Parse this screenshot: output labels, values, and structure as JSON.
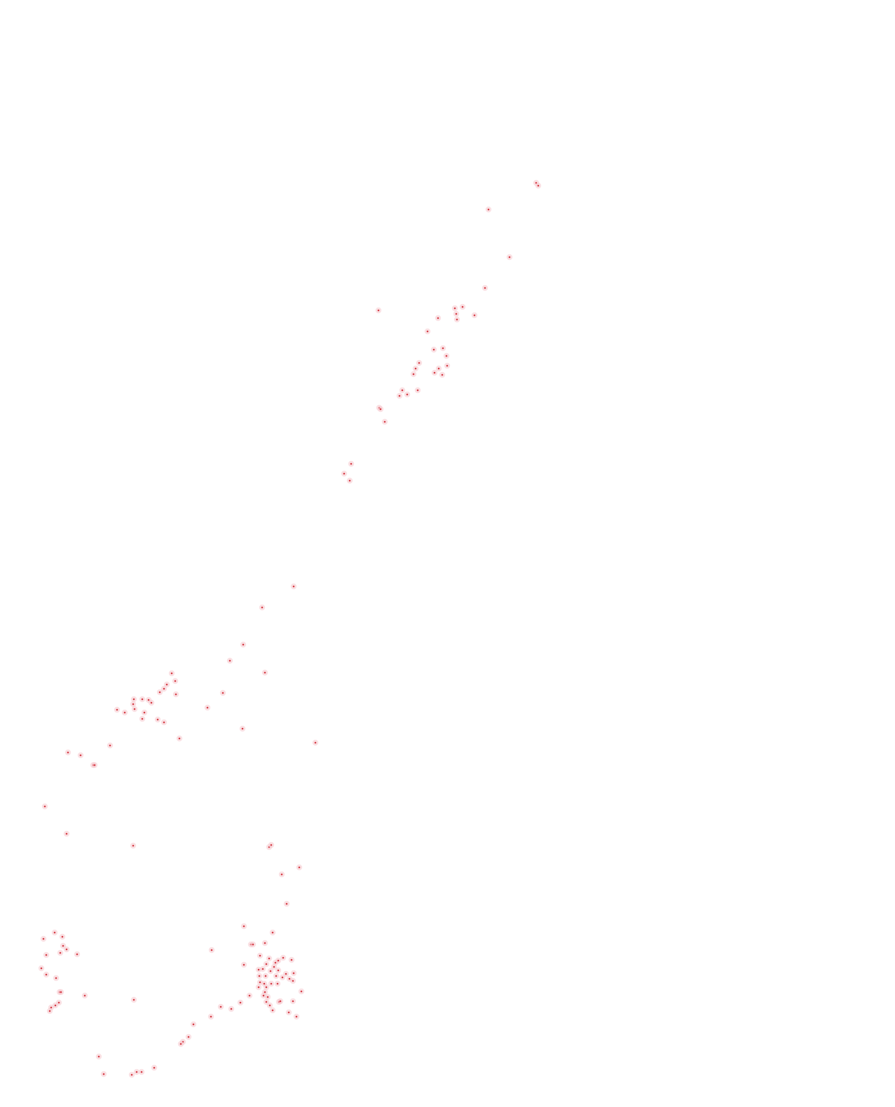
{
  "map": {
    "marker_style": {
      "fill": "#d6404a",
      "halo": "#f6c9cd"
    },
    "marker_count": 170
  }
}
